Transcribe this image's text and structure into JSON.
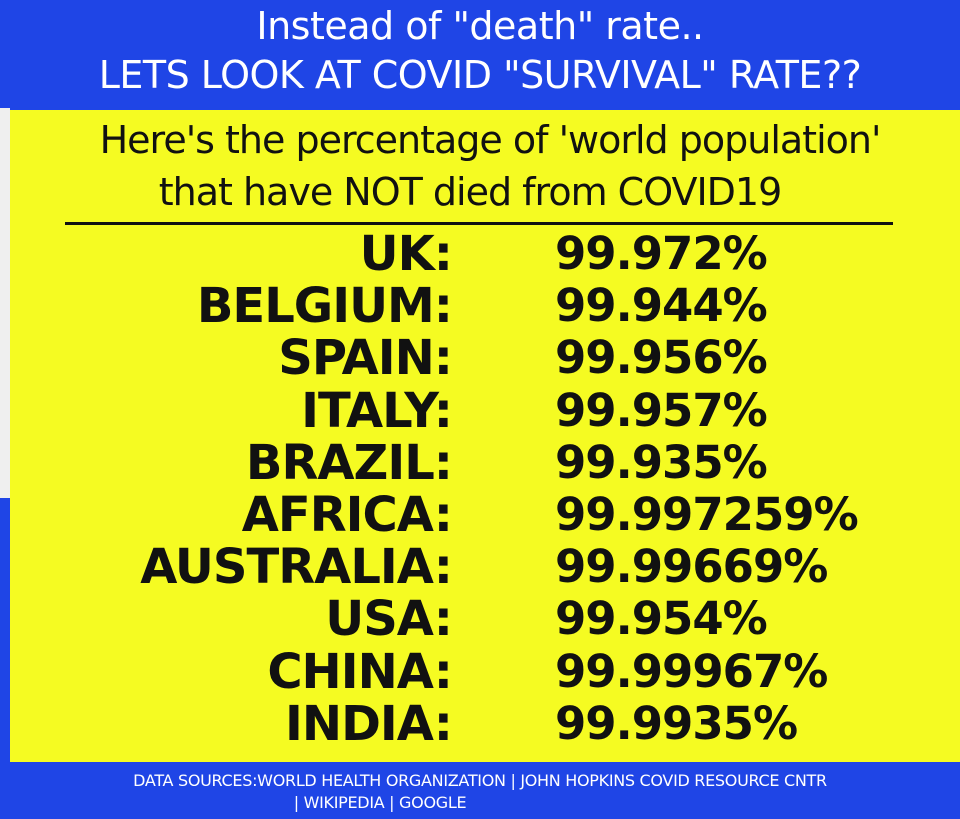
{
  "header": {
    "line1": "Instead of \"death\" rate..",
    "line2": "LETS LOOK AT COVID \"SURVIVAL\" RATE??"
  },
  "subtitle": {
    "line1": "Here's the percentage of 'world population'",
    "line2": "that have NOT died from COVID19"
  },
  "rows": [
    {
      "country": "UK:",
      "rate": "99.972%"
    },
    {
      "country": "BELGIUM:",
      "rate": "99.944%"
    },
    {
      "country": "SPAIN:",
      "rate": "99.956%"
    },
    {
      "country": "ITALY:",
      "rate": "99.957%"
    },
    {
      "country": "BRAZIL:",
      "rate": "99.935%"
    },
    {
      "country": "AFRICA:",
      "rate": "99.997259%"
    },
    {
      "country": "AUSTRALIA:",
      "rate": "99.99669%"
    },
    {
      "country": "USA:",
      "rate": "99.954%"
    },
    {
      "country": "CHINA:",
      "rate": "99.99967%"
    },
    {
      "country": "INDIA:",
      "rate": "99.9935%"
    }
  ],
  "footer": {
    "line1": "DATA SOURCES:WORLD HEALTH ORGANIZATION | JOHN HOPKINS COVID RESOURCE CNTR",
    "line2": "| WIKIPEDIA | GOOGLE"
  },
  "colors": {
    "blue": "#1f45e6",
    "yellow": "#f5fb22",
    "text": "#111111"
  }
}
